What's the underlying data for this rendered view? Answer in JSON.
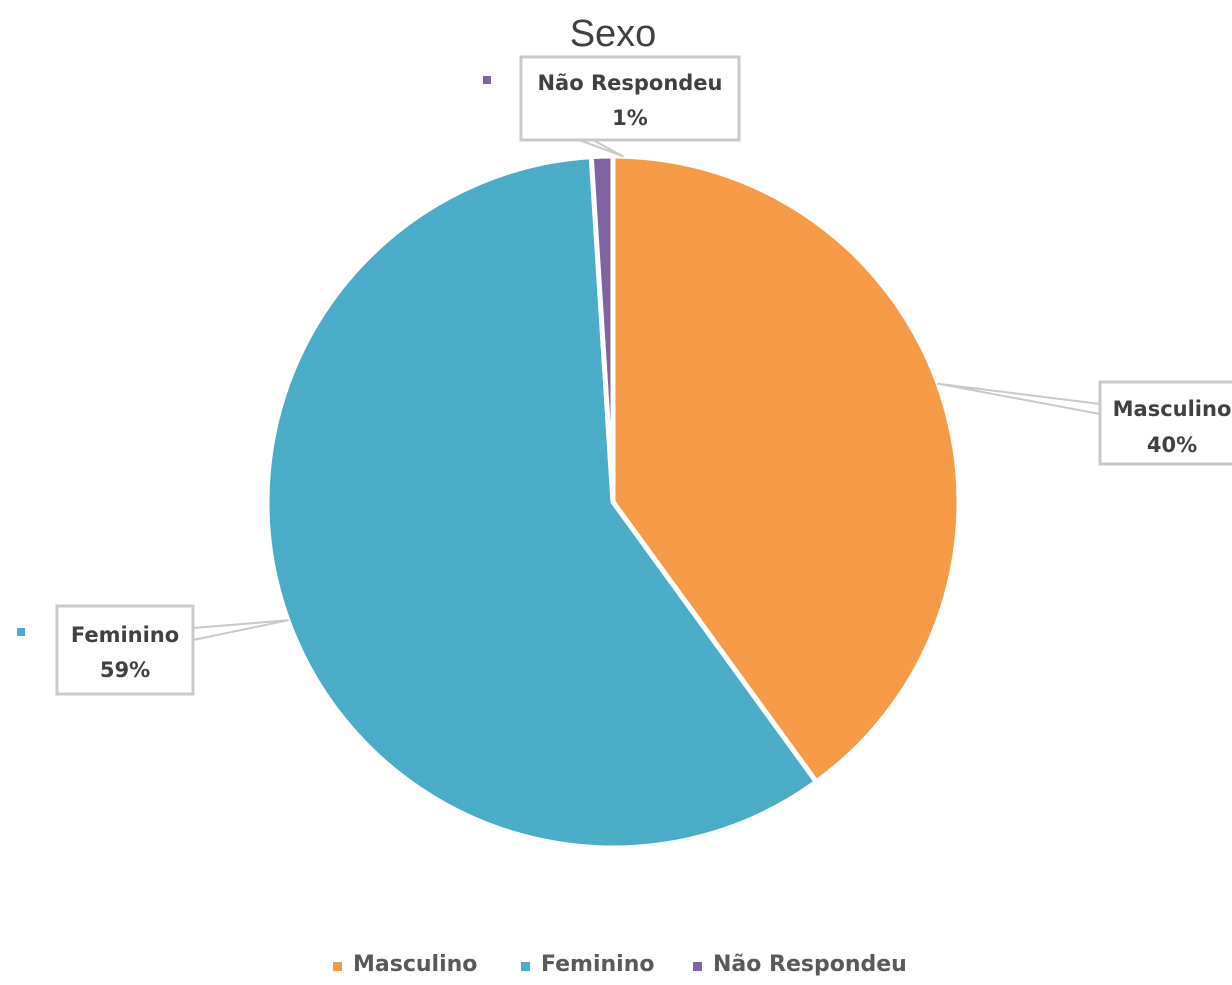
{
  "chart_data": {
    "type": "pie",
    "title": "Sexo",
    "categories": [
      "Masculino",
      "Feminino",
      "Não Respondeu"
    ],
    "values": [
      40,
      59,
      1
    ],
    "value_labels": [
      "40%",
      "59%",
      "1%"
    ],
    "colors": [
      "#F59B47",
      "#4AACC6",
      "#8064A2"
    ],
    "legend_position": "bottom",
    "start_angle_deg": 0,
    "direction": "clockwise"
  }
}
